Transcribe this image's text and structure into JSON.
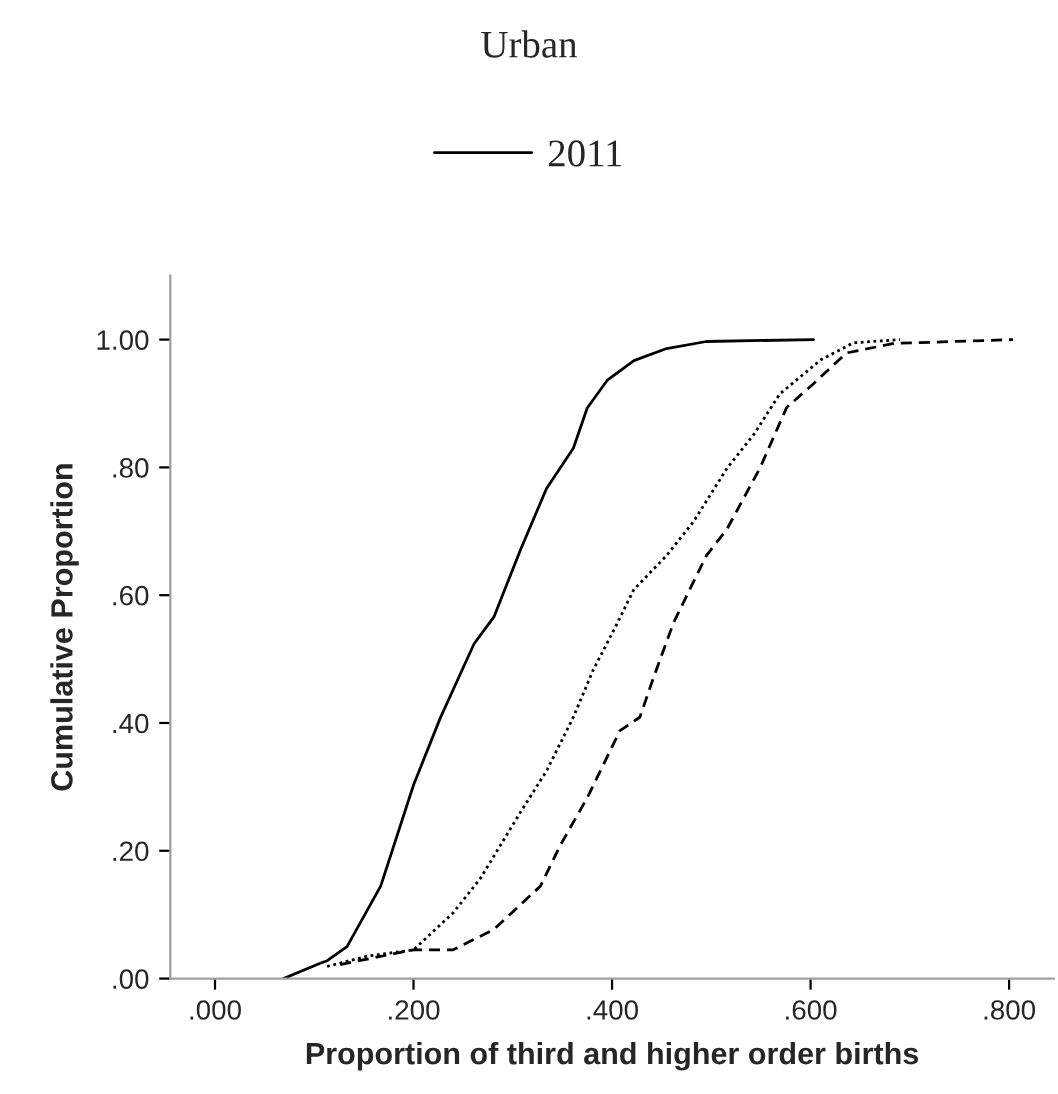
{
  "chart_data": {
    "type": "line",
    "title": "Urban",
    "xlabel": "Proportion of third and higher order births",
    "ylabel": "Cumulative Proportion",
    "xlim": [
      -0.045,
      0.845
    ],
    "ylim": [
      0,
      1.1
    ],
    "xticks": [
      {
        "value": 0,
        "label": ".000"
      },
      {
        "value": 0.2,
        "label": ".200"
      },
      {
        "value": 0.4,
        "label": ".400"
      },
      {
        "value": 0.6,
        "label": ".600"
      },
      {
        "value": 0.8,
        "label": ".800"
      }
    ],
    "yticks": [
      {
        "value": 0,
        "label": ".00"
      },
      {
        "value": 0.2,
        "label": ".20"
      },
      {
        "value": 0.4,
        "label": ".40"
      },
      {
        "value": 0.6,
        "label": ".60"
      },
      {
        "value": 0.8,
        "label": ".80"
      },
      {
        "value": 1,
        "label": "1.00"
      }
    ],
    "grid": false,
    "legend": "top",
    "marker": "none",
    "series": [
      {
        "name": "2011",
        "color": "#000000",
        "line_style": "solid",
        "x": [
          0.069,
          0.106,
          0.113,
          0.133,
          0.167,
          0.2,
          0.227,
          0.261,
          0.281,
          0.308,
          0.334,
          0.361,
          0.375,
          0.395,
          0.422,
          0.455,
          0.495,
          0.603
        ],
        "values": [
          0,
          0.024,
          0.028,
          0.05,
          0.145,
          0.303,
          0.408,
          0.524,
          0.566,
          0.672,
          0.767,
          0.83,
          0.893,
          0.936,
          0.967,
          0.986,
          0.997,
          1.0
        ]
      },
      {
        "color": "#000000",
        "line_style": "dotted",
        "x": [
          0.113,
          0.153,
          0.2,
          0.24,
          0.267,
          0.308,
          0.334,
          0.361,
          0.381,
          0.402,
          0.422,
          0.455,
          0.482,
          0.516,
          0.543,
          0.569,
          0.61,
          0.643,
          0.69
        ],
        "values": [
          0.019,
          0.035,
          0.045,
          0.103,
          0.156,
          0.261,
          0.325,
          0.409,
          0.483,
          0.546,
          0.609,
          0.662,
          0.715,
          0.799,
          0.852,
          0.915,
          0.968,
          0.995,
          1.0
        ]
      },
      {
        "color": "#000000",
        "line_style": "dashed",
        "x": [
          0.126,
          0.2,
          0.24,
          0.281,
          0.328,
          0.348,
          0.375,
          0.408,
          0.428,
          0.442,
          0.462,
          0.495,
          0.516,
          0.549,
          0.576,
          0.603,
          0.636,
          0.684,
          0.804
        ],
        "values": [
          0.022,
          0.045,
          0.045,
          0.077,
          0.145,
          0.209,
          0.283,
          0.388,
          0.409,
          0.472,
          0.557,
          0.662,
          0.704,
          0.799,
          0.894,
          0.931,
          0.979,
          0.994,
          1.0
        ]
      }
    ]
  }
}
